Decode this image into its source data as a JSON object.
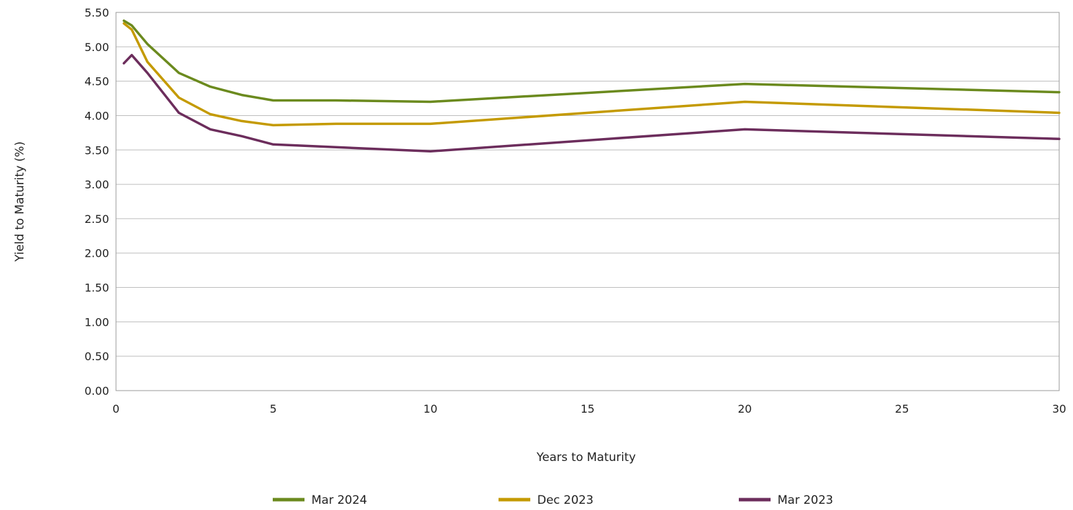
{
  "chart_data": {
    "type": "line",
    "title": "",
    "xlabel": "Years to Maturity",
    "ylabel": "Yield to Maturity (%)",
    "xlim": [
      0,
      30
    ],
    "ylim": [
      0,
      5.5
    ],
    "x_ticks": [
      "0",
      "5",
      "10",
      "15",
      "20",
      "25",
      "30"
    ],
    "y_ticks": [
      "0.00",
      "0.50",
      "1.00",
      "1.50",
      "2.00",
      "2.50",
      "3.00",
      "3.50",
      "4.00",
      "4.50",
      "5.00",
      "5.50"
    ],
    "grid": "horizontal",
    "legend_position": "bottom",
    "x": [
      0.25,
      0.5,
      1,
      2,
      3,
      4,
      5,
      7,
      10,
      20,
      30
    ],
    "series": [
      {
        "name": "Mar 2024",
        "color": "#6b8a1e",
        "values": [
          5.38,
          5.31,
          5.04,
          4.62,
          4.42,
          4.3,
          4.22,
          4.22,
          4.2,
          4.46,
          4.34
        ]
      },
      {
        "name": "Dec 2023",
        "color": "#c49a00",
        "values": [
          5.34,
          5.25,
          4.78,
          4.26,
          4.02,
          3.92,
          3.86,
          3.88,
          3.88,
          4.2,
          4.04
        ]
      },
      {
        "name": "Mar 2023",
        "color": "#6c2d5c",
        "values": [
          4.76,
          4.88,
          4.62,
          4.04,
          3.8,
          3.7,
          3.58,
          3.54,
          3.48,
          3.8,
          3.66
        ]
      }
    ]
  }
}
